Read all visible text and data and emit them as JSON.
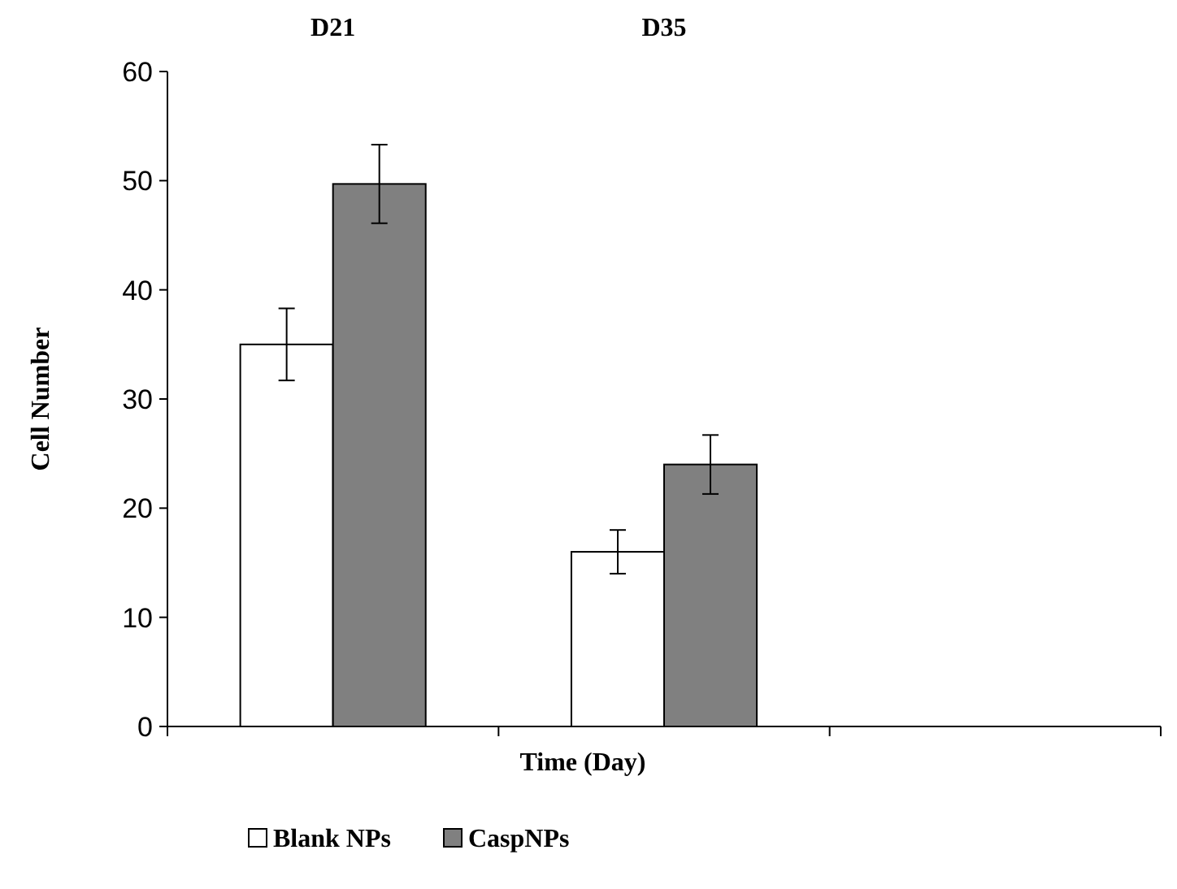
{
  "chart_data": {
    "type": "bar",
    "categories": [
      "D21",
      "D35",
      null
    ],
    "xlabel": "Time (Day)",
    "ylabel": "Cell Number",
    "series": [
      {
        "name": "Blank NPs",
        "color": "#ffffff",
        "values": [
          35,
          16,
          null
        ],
        "errors": [
          3.3,
          2,
          null
        ]
      },
      {
        "name": "CaspNPs",
        "color": "#808080",
        "values": [
          49.7,
          24,
          null
        ],
        "errors": [
          3.6,
          2.7,
          null
        ]
      }
    ],
    "ylim": [
      0,
      60
    ],
    "yticks": [
      0,
      10,
      20,
      30,
      40,
      50,
      60
    ],
    "grid": false,
    "legend": "bottom"
  }
}
